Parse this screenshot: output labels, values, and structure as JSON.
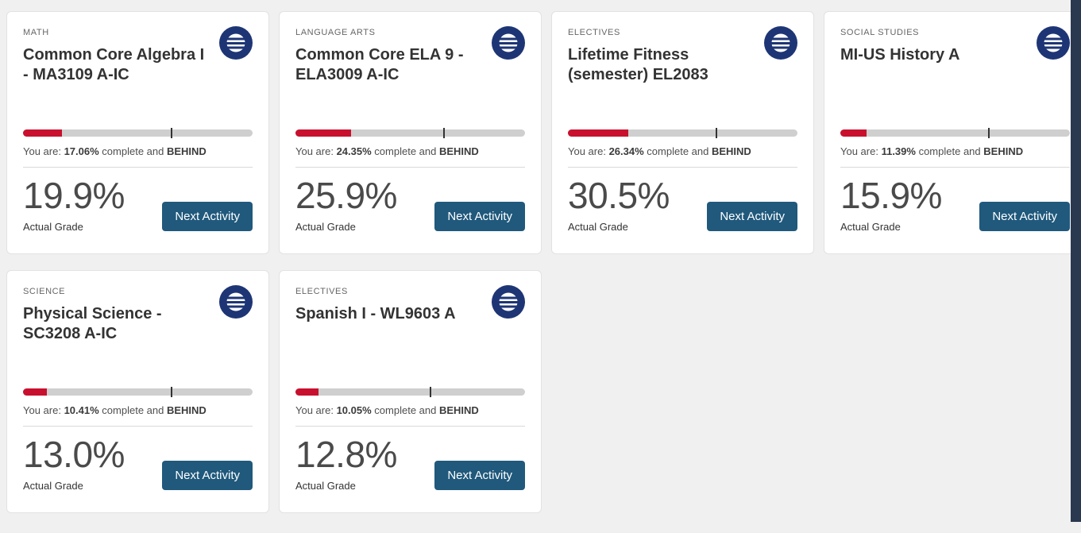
{
  "strings": {
    "you_are": "You are:",
    "complete_and": "complete and",
    "actual_grade": "Actual Grade",
    "next_activity": "Next Activity"
  },
  "colors": {
    "page_bg": "#f0f0f0",
    "progress_fill": "#c8102e",
    "button": "#20597c",
    "logo": "#1e3575",
    "scrollbar": "#2a3950"
  },
  "cards": [
    {
      "category": "MATH",
      "title": "Common Core Algebra I - MA3109 A-IC",
      "complete_pct": "17.06%",
      "progress_pct": 17.06,
      "target_pct": 64.5,
      "status_flag": "BEHIND",
      "grade": "19.9%"
    },
    {
      "category": "LANGUAGE ARTS",
      "title": "Common Core ELA 9 - ELA3009 A-IC",
      "complete_pct": "24.35%",
      "progress_pct": 24.35,
      "target_pct": 64.3,
      "status_flag": "BEHIND",
      "grade": "25.9%"
    },
    {
      "category": "ELECTIVES",
      "title": "Lifetime Fitness (semester) EL2083",
      "complete_pct": "26.34%",
      "progress_pct": 26.34,
      "target_pct": 64.3,
      "status_flag": "BEHIND",
      "grade": "30.5%"
    },
    {
      "category": "SOCIAL STUDIES",
      "title": "MI-US History A",
      "complete_pct": "11.39%",
      "progress_pct": 11.39,
      "target_pct": 64.5,
      "status_flag": "BEHIND",
      "grade": "15.9%"
    },
    {
      "category": "SCIENCE",
      "title": "Physical Science - SC3208 A-IC",
      "complete_pct": "10.41%",
      "progress_pct": 10.41,
      "target_pct": 64.5,
      "status_flag": "BEHIND",
      "grade": "13.0%"
    },
    {
      "category": "ELECTIVES",
      "title": "Spanish I - WL9603 A",
      "complete_pct": "10.05%",
      "progress_pct": 10.05,
      "target_pct": 58.4,
      "status_flag": "BEHIND",
      "grade": "12.8%"
    }
  ]
}
